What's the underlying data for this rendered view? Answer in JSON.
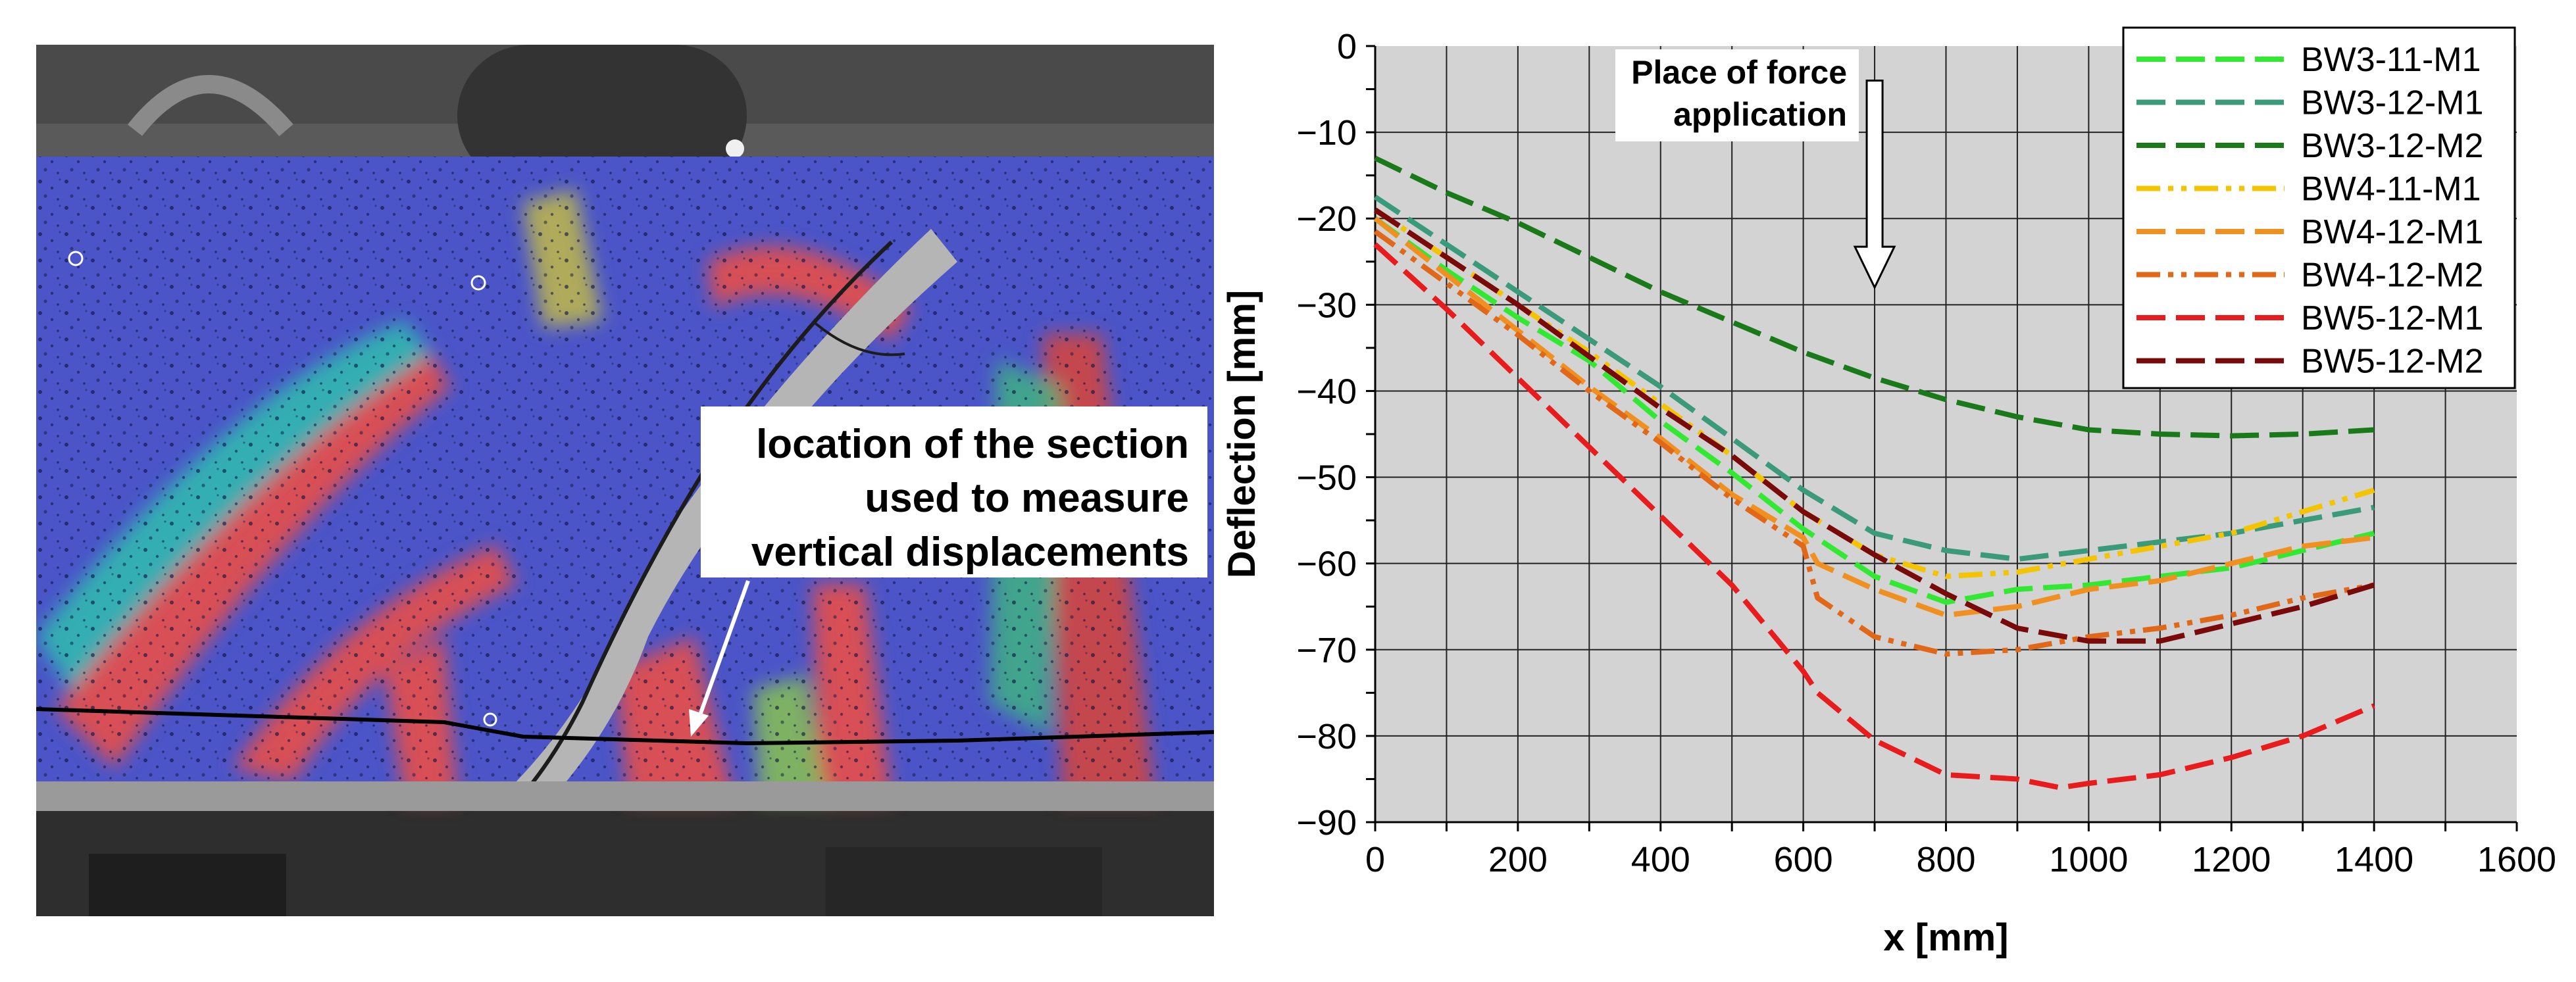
{
  "photo": {
    "annotation_lines": [
      "location of the section",
      "used to measure",
      "vertical displacements"
    ]
  },
  "chart_data": {
    "type": "line",
    "xlabel": "x [mm]",
    "ylabel": "Deflection [mm]",
    "xlim": [
      0,
      1600
    ],
    "ylim": [
      -90,
      0
    ],
    "xticks": [
      0,
      200,
      400,
      600,
      800,
      1000,
      1200,
      1400,
      1600
    ],
    "yticks": [
      0,
      -10,
      -20,
      -30,
      -40,
      -50,
      -60,
      -70,
      -80,
      -90
    ],
    "grid": true,
    "plot_background": "#d3d3d3",
    "legend_position": "top-right",
    "annotation": {
      "lines": [
        "Place of force",
        "application"
      ],
      "arrow_x": 700,
      "arrow_from_y": -4,
      "arrow_to_y": -28
    },
    "series": [
      {
        "name": "BW3-11-M1",
        "color": "#33e833",
        "dash": "long",
        "x": [
          0,
          100,
          200,
          300,
          400,
          500,
          600,
          700,
          800,
          900,
          1000,
          1100,
          1200,
          1300,
          1400
        ],
        "y": [
          -20,
          -26,
          -31.5,
          -36.5,
          -43.5,
          -49.5,
          -56,
          -61.5,
          -64.5,
          -63,
          -62.5,
          -61.5,
          -60.5,
          -58.5,
          -56.5
        ]
      },
      {
        "name": "BW3-12-M1",
        "color": "#3a9a7a",
        "dash": "long",
        "x": [
          0,
          100,
          200,
          300,
          400,
          500,
          600,
          700,
          800,
          900,
          1000,
          1100,
          1200,
          1300,
          1400
        ],
        "y": [
          -17.5,
          -23,
          -28.5,
          -34,
          -39.5,
          -45.5,
          -51.5,
          -56.5,
          -58.5,
          -59.5,
          -58.5,
          -57.5,
          -56.5,
          -55,
          -53.5
        ]
      },
      {
        "name": "BW3-12-M2",
        "color": "#1a7a1a",
        "dash": "long",
        "x": [
          0,
          100,
          200,
          300,
          400,
          500,
          600,
          700,
          800,
          900,
          1000,
          1100,
          1200,
          1300,
          1400
        ],
        "y": [
          -13,
          -17,
          -20.5,
          -24.5,
          -28.5,
          -32,
          -35.5,
          -38.5,
          -41,
          -43,
          -44.5,
          -45,
          -45.2,
          -45,
          -44.5
        ]
      },
      {
        "name": "BW4-11-M1",
        "color": "#f5c400",
        "dash": "dashdotdot",
        "x": [
          0,
          100,
          200,
          300,
          400,
          500,
          600,
          700,
          800,
          900,
          1000,
          1100,
          1200,
          1300,
          1400
        ],
        "y": [
          -19,
          -24.5,
          -30,
          -35.5,
          -41.5,
          -47.5,
          -54,
          -59,
          -61.5,
          -61,
          -59.5,
          -58,
          -56.5,
          -54,
          -51.5
        ]
      },
      {
        "name": "BW4-12-M1",
        "color": "#f09020",
        "dash": "long",
        "x": [
          0,
          100,
          200,
          300,
          400,
          500,
          600,
          620,
          700,
          800,
          900,
          1000,
          1100,
          1200,
          1300,
          1400
        ],
        "y": [
          -20,
          -26.5,
          -33,
          -39.5,
          -45.5,
          -52,
          -57,
          -60,
          -63,
          -66,
          -65,
          -63,
          -62,
          -60,
          -58,
          -57
        ]
      },
      {
        "name": "BW4-12-M2",
        "color": "#e06818",
        "dash": "dashdotdot",
        "x": [
          0,
          100,
          200,
          300,
          400,
          500,
          600,
          620,
          700,
          800,
          900,
          1000,
          1100,
          1200,
          1300,
          1400
        ],
        "y": [
          -21.5,
          -27.5,
          -33.5,
          -40,
          -46,
          -52.5,
          -58,
          -64,
          -68.5,
          -70.5,
          -70,
          -68.5,
          -67.5,
          -66,
          -64,
          -62.5
        ]
      },
      {
        "name": "BW5-12-M1",
        "color": "#e81c1c",
        "dash": "long",
        "x": [
          0,
          100,
          200,
          300,
          400,
          500,
          600,
          620,
          700,
          800,
          900,
          960,
          1000,
          1100,
          1200,
          1300,
          1400
        ],
        "y": [
          -23,
          -30.5,
          -38.5,
          -46.5,
          -54.5,
          -62.5,
          -72.5,
          -75,
          -80.5,
          -84.5,
          -85,
          -86,
          -85.5,
          -84.5,
          -82.5,
          -80,
          -76.5
        ]
      },
      {
        "name": "BW5-12-M2",
        "color": "#7a0a0a",
        "dash": "long",
        "x": [
          0,
          100,
          200,
          300,
          400,
          500,
          600,
          700,
          800,
          900,
          1000,
          1100,
          1200,
          1300,
          1400
        ],
        "y": [
          -19,
          -24.5,
          -30,
          -36,
          -42,
          -47.5,
          -54,
          -59,
          -63.5,
          -67.5,
          -69,
          -69,
          -67,
          -65,
          -62.5
        ]
      }
    ]
  }
}
